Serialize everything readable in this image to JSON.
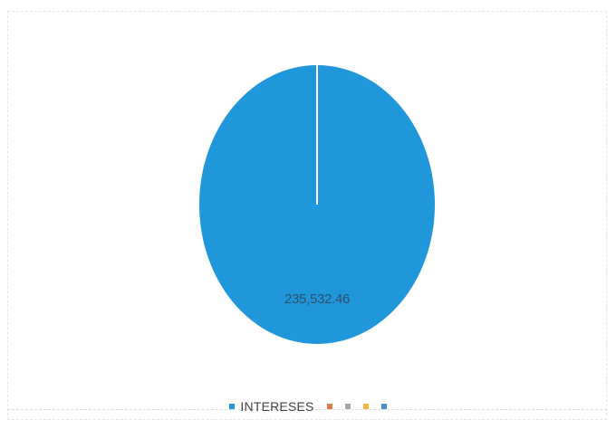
{
  "chart_data": {
    "type": "pie",
    "slices": [
      {
        "name": "INTERESES",
        "value": 235532.46,
        "label": "235,532.46",
        "color": "#1f97da"
      },
      {
        "name": "",
        "value": 0,
        "color": "#e07a46"
      },
      {
        "name": "",
        "value": 0,
        "color": "#a5a5a5"
      },
      {
        "name": "",
        "value": 0,
        "color": "#f6b73c"
      },
      {
        "name": "",
        "value": 0,
        "color": "#4a90c8"
      }
    ],
    "legend_position": "bottom",
    "separator_color": "#ffffff"
  }
}
